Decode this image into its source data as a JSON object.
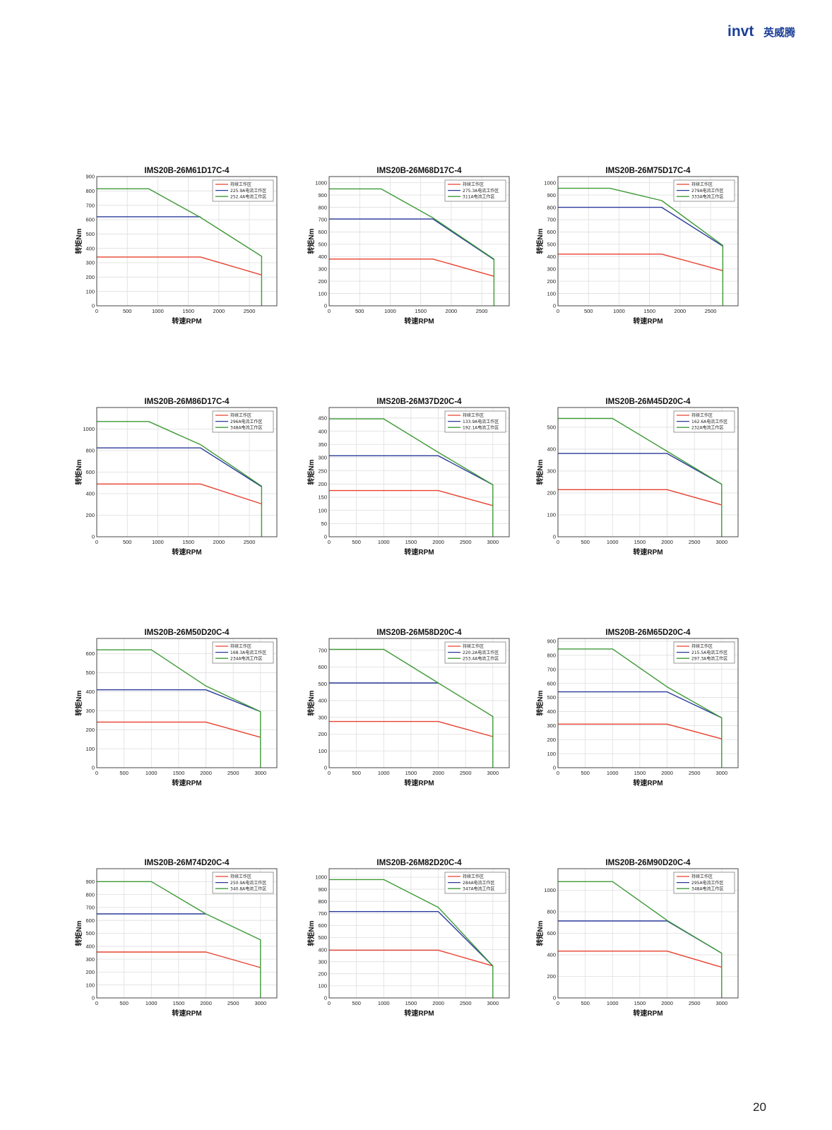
{
  "header": {
    "logo_brand": "invt",
    "logo_cn": "英威腾"
  },
  "page_number": "20",
  "colors": {
    "continuous": "#e8402f",
    "mid": "#2a3a9a",
    "peak": "#3d9a36"
  },
  "chart_data": [
    {
      "type": "line",
      "title": "IMS20B-26M61D17C-4",
      "xlabel": "转速RPM",
      "ylabel": "转矩Nm",
      "xlim": [
        0,
        2950
      ],
      "xticks": [
        0,
        500,
        1000,
        1500,
        2000,
        2500
      ],
      "ylim": [
        0,
        900
      ],
      "yticks": [
        0,
        100,
        200,
        300,
        400,
        500,
        600,
        700,
        800,
        900
      ],
      "grid": true,
      "legend_position": "top-right",
      "series": [
        {
          "name": "持续工作区",
          "color": "#e8402f",
          "x": [
            0,
            1700,
            2700
          ],
          "y": [
            340,
            340,
            215
          ]
        },
        {
          "name": "225.9A电流工作区",
          "color": "#2a3a9a",
          "x": [
            0,
            1700
          ],
          "y": [
            620,
            620
          ]
        },
        {
          "name": "252.4A电流工作区",
          "color": "#3d9a36",
          "x": [
            0,
            850,
            1700,
            2700,
            2700
          ],
          "y": [
            815,
            815,
            615,
            345,
            0
          ]
        }
      ]
    },
    {
      "type": "line",
      "title": "IMS20B-26M68D17C-4",
      "xlabel": "转速RPM",
      "ylabel": "转矩Nm",
      "xlim": [
        0,
        2950
      ],
      "xticks": [
        0,
        500,
        1000,
        1500,
        2000,
        2500
      ],
      "ylim": [
        0,
        1050
      ],
      "yticks": [
        0,
        100,
        200,
        300,
        400,
        500,
        600,
        700,
        800,
        900,
        1000
      ],
      "grid": true,
      "legend_position": "top-right",
      "series": [
        {
          "name": "持续工作区",
          "color": "#e8402f",
          "x": [
            0,
            1700,
            2700
          ],
          "y": [
            380,
            380,
            240
          ]
        },
        {
          "name": "275.3A电流工作区",
          "color": "#2a3a9a",
          "x": [
            0,
            1700,
            2700
          ],
          "y": [
            705,
            705,
            375
          ]
        },
        {
          "name": "311A电流工作区",
          "color": "#3d9a36",
          "x": [
            0,
            850,
            1700,
            2700,
            2700
          ],
          "y": [
            950,
            950,
            715,
            380,
            0
          ]
        }
      ]
    },
    {
      "type": "line",
      "title": "IMS20B-26M75D17C-4",
      "xlabel": "转速RPM",
      "ylabel": "转矩Nm",
      "xlim": [
        0,
        2950
      ],
      "xticks": [
        0,
        500,
        1000,
        1500,
        2000,
        2500
      ],
      "ylim": [
        0,
        1050
      ],
      "yticks": [
        0,
        100,
        200,
        300,
        400,
        500,
        600,
        700,
        800,
        900,
        1000
      ],
      "grid": true,
      "legend_position": "top-right",
      "series": [
        {
          "name": "持续工作区",
          "color": "#e8402f",
          "x": [
            0,
            1700,
            2700
          ],
          "y": [
            420,
            420,
            285
          ]
        },
        {
          "name": "279A电流工作区",
          "color": "#2a3a9a",
          "x": [
            0,
            1700,
            2700
          ],
          "y": [
            800,
            800,
            485
          ]
        },
        {
          "name": "333A电流工作区",
          "color": "#3d9a36",
          "x": [
            0,
            850,
            1700,
            2700,
            2700
          ],
          "y": [
            955,
            955,
            855,
            490,
            0
          ]
        }
      ]
    },
    {
      "type": "line",
      "title": "IMS20B-26M86D17C-4",
      "xlabel": "转速RPM",
      "ylabel": "转矩Nm",
      "xlim": [
        0,
        2950
      ],
      "xticks": [
        0,
        500,
        1000,
        1500,
        2000,
        2500
      ],
      "ylim": [
        0,
        1200
      ],
      "yticks": [
        0,
        200,
        400,
        600,
        800,
        1000
      ],
      "grid": true,
      "legend_position": "top-right",
      "series": [
        {
          "name": "持续工作区",
          "color": "#e8402f",
          "x": [
            0,
            1700,
            2700
          ],
          "y": [
            490,
            490,
            305
          ]
        },
        {
          "name": "296A电流工作区",
          "color": "#2a3a9a",
          "x": [
            0,
            1700,
            2700
          ],
          "y": [
            825,
            825,
            465
          ]
        },
        {
          "name": "348A电流工作区",
          "color": "#3d9a36",
          "x": [
            0,
            850,
            1700,
            2700,
            2700
          ],
          "y": [
            1070,
            1070,
            855,
            470,
            0
          ]
        }
      ]
    },
    {
      "type": "line",
      "title": "IMS20B-26M37D20C-4",
      "xlabel": "转速RPM",
      "ylabel": "转矩Nm",
      "xlim": [
        0,
        3300
      ],
      "xticks": [
        0,
        500,
        1000,
        1500,
        2000,
        2500,
        3000
      ],
      "ylim": [
        0,
        490
      ],
      "yticks": [
        0,
        50,
        100,
        150,
        200,
        250,
        300,
        350,
        400,
        450
      ],
      "grid": true,
      "legend_position": "top-right",
      "series": [
        {
          "name": "持续工作区",
          "color": "#e8402f",
          "x": [
            0,
            2000,
            3000
          ],
          "y": [
            175,
            175,
            118
          ]
        },
        {
          "name": "133.9A电流工作区",
          "color": "#2a3a9a",
          "x": [
            0,
            2000,
            3000
          ],
          "y": [
            307,
            307,
            197
          ]
        },
        {
          "name": "192.1A电流工作区",
          "color": "#3d9a36",
          "x": [
            0,
            1000,
            2000,
            3000,
            3000
          ],
          "y": [
            447,
            447,
            320,
            197,
            0
          ]
        }
      ]
    },
    {
      "type": "line",
      "title": "IMS20B-26M45D20C-4",
      "xlabel": "转速RPM",
      "ylabel": "转矩Nm",
      "xlim": [
        0,
        3300
      ],
      "xticks": [
        0,
        500,
        1000,
        1500,
        2000,
        2500,
        3000
      ],
      "ylim": [
        0,
        590
      ],
      "yticks": [
        0,
        100,
        200,
        300,
        400,
        500
      ],
      "grid": true,
      "legend_position": "top-right",
      "series": [
        {
          "name": "持续工作区",
          "color": "#e8402f",
          "x": [
            0,
            2000,
            3000
          ],
          "y": [
            215,
            215,
            145
          ]
        },
        {
          "name": "162.6A电流工作区",
          "color": "#2a3a9a",
          "x": [
            0,
            2000,
            3000
          ],
          "y": [
            380,
            380,
            240
          ]
        },
        {
          "name": "232A电流工作区",
          "color": "#3d9a36",
          "x": [
            0,
            1000,
            2000,
            3000,
            3000
          ],
          "y": [
            540,
            540,
            390,
            240,
            0
          ]
        }
      ]
    },
    {
      "type": "line",
      "title": "IMS20B-26M50D20C-4",
      "xlabel": "转速RPM",
      "ylabel": "转矩Nm",
      "xlim": [
        0,
        3300
      ],
      "xticks": [
        0,
        500,
        1000,
        1500,
        2000,
        2500,
        3000
      ],
      "ylim": [
        0,
        680
      ],
      "yticks": [
        0,
        100,
        200,
        300,
        400,
        500,
        600
      ],
      "grid": true,
      "legend_position": "top-right",
      "series": [
        {
          "name": "持续工作区",
          "color": "#e8402f",
          "x": [
            0,
            2000,
            3000
          ],
          "y": [
            240,
            240,
            160
          ]
        },
        {
          "name": "168.3A电流工作区",
          "color": "#2a3a9a",
          "x": [
            0,
            2000,
            3000
          ],
          "y": [
            410,
            410,
            295
          ]
        },
        {
          "name": "234A电流工作区",
          "color": "#3d9a36",
          "x": [
            0,
            1000,
            2000,
            3000,
            3000
          ],
          "y": [
            620,
            620,
            430,
            295,
            0
          ]
        }
      ]
    },
    {
      "type": "line",
      "title": "IMS20B-26M58D20C-4",
      "xlabel": "转速RPM",
      "ylabel": "转矩Nm",
      "xlim": [
        0,
        3300
      ],
      "xticks": [
        0,
        500,
        1000,
        1500,
        2000,
        2500,
        3000
      ],
      "ylim": [
        0,
        770
      ],
      "yticks": [
        0,
        100,
        200,
        300,
        400,
        500,
        600,
        700
      ],
      "grid": true,
      "legend_position": "top-right",
      "series": [
        {
          "name": "持续工作区",
          "color": "#e8402f",
          "x": [
            0,
            2000,
            3000
          ],
          "y": [
            275,
            275,
            185
          ]
        },
        {
          "name": "220.2A电流工作区",
          "color": "#2a3a9a",
          "x": [
            0,
            2000
          ],
          "y": [
            505,
            505
          ]
        },
        {
          "name": "253.4A电流工作区",
          "color": "#3d9a36",
          "x": [
            0,
            1000,
            2000,
            3000,
            3000
          ],
          "y": [
            705,
            705,
            505,
            305,
            0
          ]
        }
      ]
    },
    {
      "type": "line",
      "title": "IMS20B-26M65D20C-4",
      "xlabel": "转速RPM",
      "ylabel": "转矩Nm",
      "xlim": [
        0,
        3300
      ],
      "xticks": [
        0,
        500,
        1000,
        1500,
        2000,
        2500,
        3000
      ],
      "ylim": [
        0,
        920
      ],
      "yticks": [
        0,
        100,
        200,
        300,
        400,
        500,
        600,
        700,
        800,
        900
      ],
      "grid": true,
      "legend_position": "top-right",
      "series": [
        {
          "name": "持续工作区",
          "color": "#e8402f",
          "x": [
            0,
            2000,
            3000
          ],
          "y": [
            310,
            310,
            205
          ]
        },
        {
          "name": "215.5A电流工作区",
          "color": "#2a3a9a",
          "x": [
            0,
            2000,
            3000
          ],
          "y": [
            540,
            540,
            355
          ]
        },
        {
          "name": "297.3A电流工作区",
          "color": "#3d9a36",
          "x": [
            0,
            1000,
            2000,
            3000,
            3000
          ],
          "y": [
            845,
            845,
            575,
            355,
            0
          ]
        }
      ]
    },
    {
      "type": "line",
      "title": "IMS20B-26M74D20C-4",
      "xlabel": "转速RPM",
      "ylabel": "转矩Nm",
      "xlim": [
        0,
        3300
      ],
      "xticks": [
        0,
        500,
        1000,
        1500,
        2000,
        2500,
        3000
      ],
      "ylim": [
        0,
        1000
      ],
      "yticks": [
        0,
        100,
        200,
        300,
        400,
        500,
        600,
        700,
        800,
        900
      ],
      "grid": true,
      "legend_position": "top-right",
      "series": [
        {
          "name": "持续工作区",
          "color": "#e8402f",
          "x": [
            0,
            2000,
            3000
          ],
          "y": [
            355,
            355,
            235
          ]
        },
        {
          "name": "250.9A电流工作区",
          "color": "#2a3a9a",
          "x": [
            0,
            2000
          ],
          "y": [
            650,
            650
          ]
        },
        {
          "name": "340.8A电流工作区",
          "color": "#3d9a36",
          "x": [
            0,
            1000,
            2000,
            3000,
            3000
          ],
          "y": [
            900,
            900,
            650,
            450,
            0
          ]
        }
      ]
    },
    {
      "type": "line",
      "title": "IMS20B-26M82D20C-4",
      "xlabel": "转速RPM",
      "ylabel": "转矩Nm",
      "xlim": [
        0,
        3300
      ],
      "xticks": [
        0,
        500,
        1000,
        1500,
        2000,
        2500,
        3000
      ],
      "ylim": [
        0,
        1070
      ],
      "yticks": [
        0,
        100,
        200,
        300,
        400,
        500,
        600,
        700,
        800,
        900,
        1000
      ],
      "grid": true,
      "legend_position": "top-right",
      "series": [
        {
          "name": "持续工作区",
          "color": "#e8402f",
          "x": [
            0,
            2000,
            3000
          ],
          "y": [
            395,
            395,
            265
          ]
        },
        {
          "name": "284A电流工作区",
          "color": "#2a3a9a",
          "x": [
            0,
            2000,
            3000
          ],
          "y": [
            715,
            715,
            265
          ]
        },
        {
          "name": "347A电流工作区",
          "color": "#3d9a36",
          "x": [
            0,
            1000,
            2000,
            3000,
            3000
          ],
          "y": [
            980,
            980,
            750,
            265,
            0
          ]
        }
      ]
    },
    {
      "type": "line",
      "title": "IMS20B-26M90D20C-4",
      "xlabel": "转速RPM",
      "ylabel": "转矩Nm",
      "xlim": [
        0,
        3300
      ],
      "xticks": [
        0,
        500,
        1000,
        1500,
        2000,
        2500,
        3000
      ],
      "ylim": [
        0,
        1200
      ],
      "yticks": [
        0,
        200,
        400,
        600,
        800,
        1000
      ],
      "grid": true,
      "legend_position": "top-right",
      "series": [
        {
          "name": "持续工作区",
          "color": "#e8402f",
          "x": [
            0,
            2000,
            3000
          ],
          "y": [
            435,
            435,
            285
          ]
        },
        {
          "name": "295A电流工作区",
          "color": "#2a3a9a",
          "x": [
            0,
            2000,
            3000
          ],
          "y": [
            715,
            715,
            415
          ]
        },
        {
          "name": "348A电流工作区",
          "color": "#3d9a36",
          "x": [
            0,
            1000,
            2000,
            3000,
            3000
          ],
          "y": [
            1080,
            1080,
            720,
            415,
            0
          ]
        }
      ]
    }
  ]
}
